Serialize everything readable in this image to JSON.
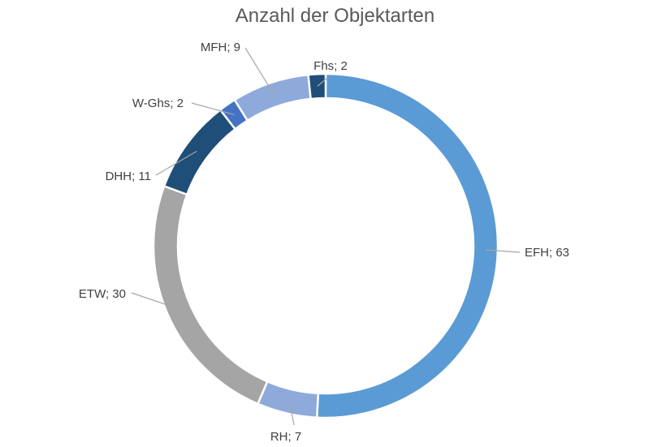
{
  "chart_data": {
    "type": "pie",
    "variant": "doughnut",
    "title": "Anzahl der Objektarten",
    "start_angle_deg": 0,
    "direction": "clockwise",
    "slices": [
      {
        "label": "EFH",
        "value": 63,
        "color": "#5B9BD5"
      },
      {
        "label": "RH",
        "value": 7,
        "color": "#8EAADB"
      },
      {
        "label": "ETW",
        "value": 30,
        "color": "#A5A5A5"
      },
      {
        "label": "DHH",
        "value": 11,
        "color": "#1F4E79"
      },
      {
        "label": "W-Ghs",
        "value": 2,
        "color": "#4472C4"
      },
      {
        "label": "MFH",
        "value": 9,
        "color": "#8EAADB"
      },
      {
        "label": "Fhs",
        "value": 2,
        "color": "#1F4E79"
      }
    ],
    "data_labels": [
      "EFH; 63",
      "RH; 7",
      "ETW; 30",
      "DHH; 11",
      "W-Ghs; 2",
      "MFH; 9",
      "Fhs; 2"
    ],
    "legend": "none",
    "colors": {
      "title": "#595959",
      "label_text": "#404040",
      "leader_line": "#A6A6A6",
      "slice_border": "#ffffff"
    }
  }
}
